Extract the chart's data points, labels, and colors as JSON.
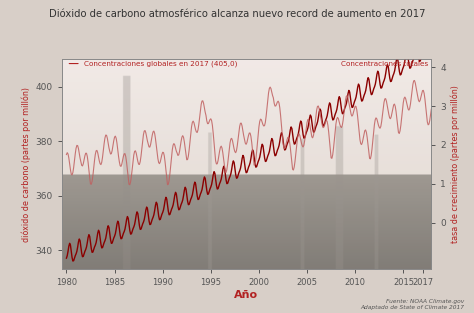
{
  "title": "Dióxido de carbono atmosférico alcanza nuevo record de aumento en 2017",
  "xlabel": "Año",
  "ylabel_left": "dióxido de carbono (partes por millón)",
  "ylabel_right": "tasa de crecimiento (partes por millón)",
  "source": "Fuente: NOAA Climate.gov\nAdaptado de State of Climate 2017",
  "label_seasonal": "Concentraciones globales en 2017 (405,0)",
  "label_total": "Concentraciones totales",
  "xlim": [
    1979.5,
    2017.9
  ],
  "ylim_left": [
    333,
    410
  ],
  "ylim_right": [
    -1.2,
    4.2
  ],
  "yticks_left": [
    340,
    360,
    380,
    400
  ],
  "yticks_right": [
    0,
    1,
    2,
    3,
    4
  ],
  "xticks": [
    1980,
    1985,
    1990,
    1995,
    2000,
    2005,
    2010,
    2015,
    2017
  ],
  "line_color_co2": "#8b0000",
  "line_color_growth": "#c06060",
  "title_color": "#333333",
  "axis_color": "#555555",
  "label_color": "#b22222",
  "tick_color": "#555555",
  "bg_color": "#d8cfc8"
}
